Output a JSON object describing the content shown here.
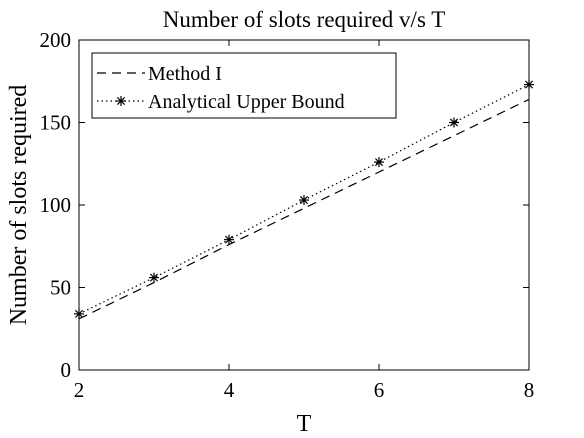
{
  "chart_data": {
    "type": "line",
    "title": "Number of slots required v/s T",
    "xlabel": "T",
    "ylabel": "Number of slots required",
    "xlim": [
      2,
      8
    ],
    "ylim": [
      0,
      200
    ],
    "xticks": [
      2,
      4,
      6,
      8
    ],
    "yticks": [
      0,
      50,
      100,
      150,
      200
    ],
    "grid": false,
    "legend_position": "top-left",
    "series": [
      {
        "name": "Method I",
        "style": "dashed",
        "marker": "none",
        "color": "#000000",
        "x": [
          2,
          3,
          4,
          5,
          6,
          7,
          8
        ],
        "values": [
          31,
          53,
          76,
          98,
          120,
          142,
          164
        ]
      },
      {
        "name": "Analytical Upper Bound",
        "style": "dotted",
        "marker": "asterisk",
        "color": "#000000",
        "x": [
          2,
          3,
          4,
          5,
          6,
          7,
          8
        ],
        "values": [
          34,
          56,
          79,
          103,
          126,
          150,
          173
        ]
      }
    ]
  }
}
